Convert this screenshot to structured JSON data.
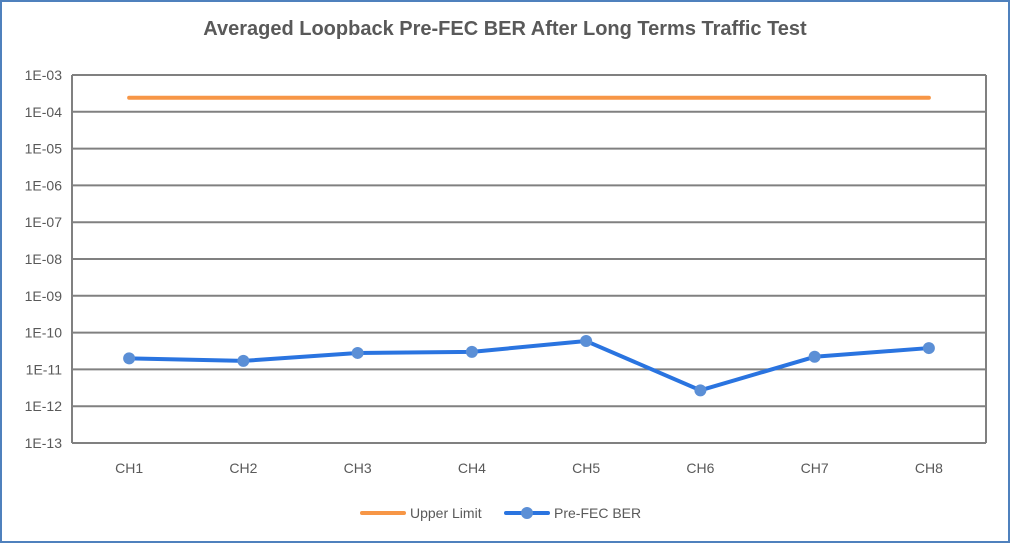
{
  "chart_data": {
    "type": "line",
    "title": "Averaged Loopback Pre-FEC BER After Long Terms  Traffic Test",
    "xlabel": "",
    "ylabel": "",
    "yscale": "log",
    "ylim": [
      1e-13,
      0.001
    ],
    "y_tick_labels": [
      "1E-03",
      "1E-04",
      "1E-05",
      "1E-06",
      "1E-07",
      "1E-08",
      "1E-09",
      "1E-10",
      "1E-11",
      "1E-12",
      "1E-13"
    ],
    "y_tick_values": [
      0.001,
      0.0001,
      1e-05,
      1e-06,
      1e-07,
      1e-08,
      1e-09,
      1e-10,
      1e-11,
      1e-12,
      1e-13
    ],
    "categories": [
      "CH1",
      "CH2",
      "CH3",
      "CH4",
      "CH5",
      "CH6",
      "CH7",
      "CH8"
    ],
    "grid": true,
    "legend_position": "bottom",
    "series": [
      {
        "name": "Upper Limit",
        "color": "#f79646",
        "markers": false,
        "values": [
          0.00024,
          0.00024,
          0.00024,
          0.00024,
          0.00024,
          0.00024,
          0.00024,
          0.00024
        ]
      },
      {
        "name": "Pre-FEC BER",
        "color": "#2a74e0",
        "marker_color": "#5b8fd6",
        "markers": true,
        "values": [
          2e-11,
          1.7e-11,
          2.8e-11,
          3e-11,
          5.9e-11,
          2.7e-12,
          2.2e-11,
          3.8e-11
        ]
      }
    ]
  }
}
